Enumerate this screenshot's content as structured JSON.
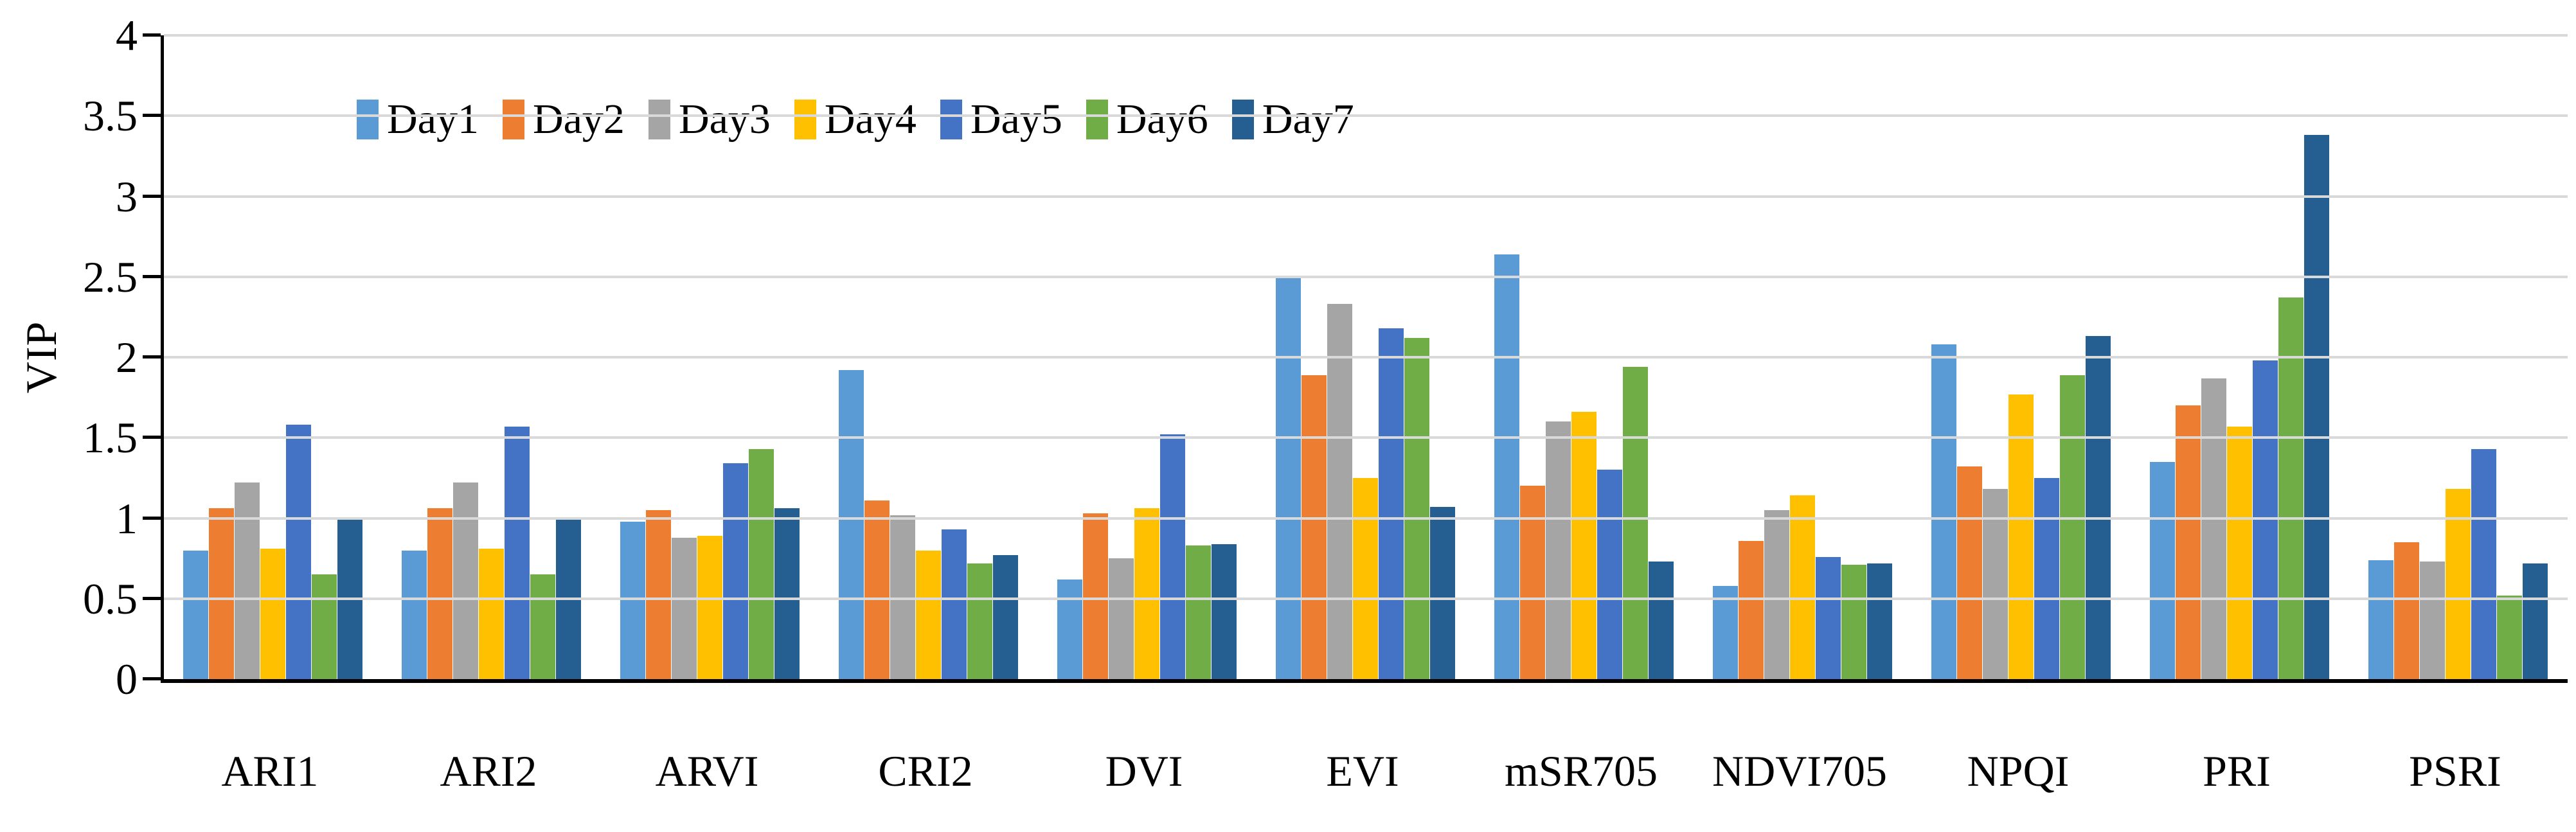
{
  "chart_data": {
    "type": "bar",
    "title": "",
    "xlabel": "",
    "ylabel": "VIP",
    "ylim": [
      0,
      4
    ],
    "ytick_step": 0.5,
    "ytick_labels": [
      "0",
      "0.5",
      "1",
      "1.5",
      "2",
      "2.5",
      "3",
      "3.5",
      "4"
    ],
    "grid": true,
    "gridline_color": "#D9D9D9",
    "axis_color": "#000000",
    "legend_position": "top-left",
    "categories": [
      "ARI1",
      "ARI2",
      "ARVI",
      "CRI2",
      "DVI",
      "EVI",
      "mSR705",
      "NDVI705",
      "NPQI",
      "PRI",
      "PSRI"
    ],
    "series": [
      {
        "name": "Day1",
        "color": "#5B9BD5",
        "values": [
          0.8,
          0.8,
          0.98,
          1.92,
          0.62,
          2.49,
          2.64,
          0.58,
          2.08,
          1.35,
          0.74
        ]
      },
      {
        "name": "Day2",
        "color": "#ED7D31",
        "values": [
          1.06,
          1.06,
          1.05,
          1.11,
          1.03,
          1.89,
          1.2,
          0.86,
          1.32,
          1.7,
          0.85
        ]
      },
      {
        "name": "Day3",
        "color": "#A5A5A5",
        "values": [
          1.22,
          1.22,
          0.88,
          1.02,
          0.75,
          2.33,
          1.6,
          1.05,
          1.18,
          1.87,
          0.73
        ]
      },
      {
        "name": "Day4",
        "color": "#FFC000",
        "values": [
          0.81,
          0.81,
          0.89,
          0.8,
          1.06,
          1.25,
          1.66,
          1.14,
          1.77,
          1.57,
          1.18
        ]
      },
      {
        "name": "Day5",
        "color": "#4472C4",
        "values": [
          1.58,
          1.57,
          1.34,
          0.93,
          1.52,
          2.18,
          1.3,
          0.76,
          1.25,
          1.98,
          1.43
        ]
      },
      {
        "name": "Day6",
        "color": "#70AD47",
        "values": [
          0.65,
          0.65,
          1.43,
          0.72,
          0.83,
          2.12,
          1.94,
          0.71,
          1.89,
          2.37,
          0.52
        ]
      },
      {
        "name": "Day7",
        "color": "#255E91",
        "values": [
          1.0,
          1.0,
          1.06,
          0.77,
          0.84,
          1.07,
          0.73,
          0.72,
          2.13,
          3.38,
          0.72
        ]
      }
    ]
  }
}
